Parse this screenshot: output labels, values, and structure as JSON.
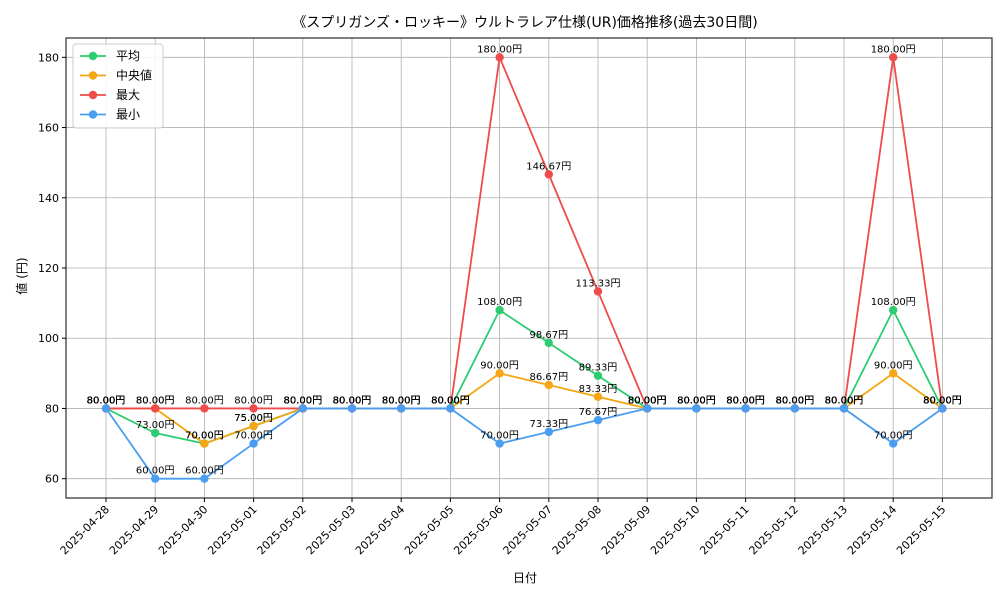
{
  "chart_data": {
    "type": "line",
    "title": "《スプリガンズ・ロッキー》ウルトラレア仕様(UR)価格推移(過去30日間)",
    "xlabel": "日付",
    "ylabel": "値 (円)",
    "ylim": [
      54.5,
      185.5
    ],
    "yticks": [
      60,
      80,
      100,
      120,
      140,
      160,
      180
    ],
    "grid": true,
    "legend_position": "top-left",
    "value_suffix": "円",
    "categories": [
      "2025-04-28",
      "2025-04-29",
      "2025-04-30",
      "2025-05-01",
      "2025-05-02",
      "2025-05-03",
      "2025-05-04",
      "2025-05-05",
      "2025-05-06",
      "2025-05-07",
      "2025-05-08",
      "2025-05-09",
      "2025-05-10",
      "2025-05-11",
      "2025-05-12",
      "2025-05-13",
      "2025-05-14",
      "2025-05-15"
    ],
    "series": [
      {
        "name": "平均",
        "color": "#2ecc71",
        "values": [
          80,
          73,
          70,
          75,
          80,
          80,
          80,
          80,
          108,
          98.67,
          89.33,
          80,
          80,
          80,
          80,
          80,
          108,
          80
        ]
      },
      {
        "name": "中央値",
        "color": "#f5a614",
        "values": [
          80,
          80,
          70,
          75,
          80,
          80,
          80,
          80,
          90,
          86.67,
          83.33,
          80,
          80,
          80,
          80,
          80,
          90,
          80
        ]
      },
      {
        "name": "最大",
        "color": "#ef4b4b",
        "values": [
          80,
          80,
          80,
          80,
          80,
          80,
          80,
          80,
          180,
          146.67,
          113.33,
          80,
          80,
          80,
          80,
          80,
          180,
          80
        ]
      },
      {
        "name": "最小",
        "color": "#4b9df0",
        "values": [
          80,
          60,
          60,
          70,
          80,
          80,
          80,
          80,
          70,
          73.33,
          76.67,
          80,
          80,
          80,
          80,
          80,
          70,
          80
        ]
      }
    ]
  }
}
